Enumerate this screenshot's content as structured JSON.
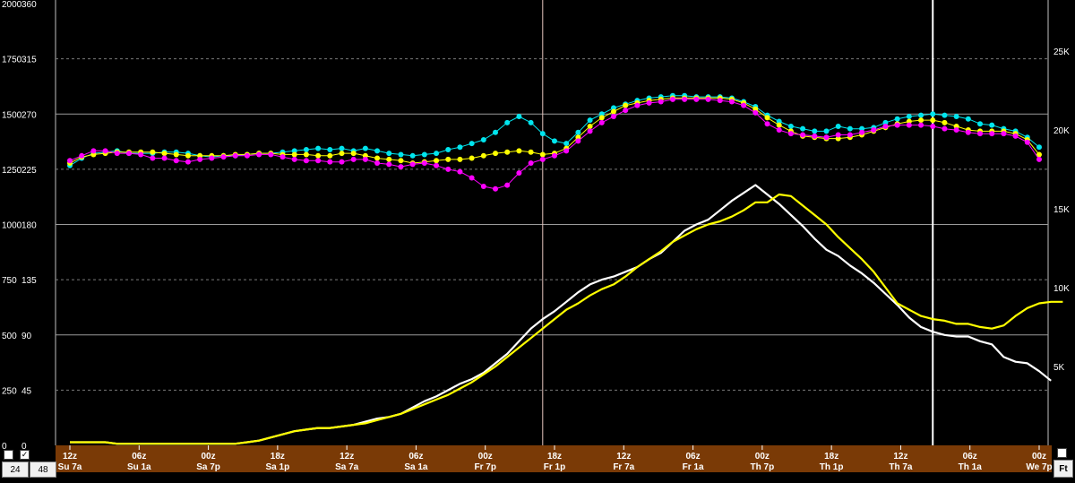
{
  "chart_data": {
    "type": "line",
    "grid": true,
    "left_axis_outer": {
      "ticks": [
        0,
        250,
        500,
        750,
        1000,
        1250,
        1500,
        1750,
        2000
      ],
      "range": [
        0,
        2000
      ]
    },
    "left_axis_inner": {
      "ticks": [
        0,
        45,
        90,
        135,
        180,
        225,
        270,
        315,
        360
      ],
      "range": [
        0,
        360
      ]
    },
    "right_axis": {
      "ticks": [
        "5K",
        "10K",
        "15K",
        "20K",
        "25K"
      ],
      "values": [
        5,
        10,
        15,
        20,
        25
      ],
      "range": [
        0,
        28
      ]
    },
    "x_ticks_utc": [
      "12z",
      "06z",
      "00z",
      "18z",
      "12z",
      "06z",
      "00z",
      "18z",
      "12z",
      "06z",
      "00z",
      "18z",
      "12z",
      "06z",
      "00z"
    ],
    "x_ticks_local": [
      "Su 7a",
      "Su 1a",
      "Sa 7p",
      "Sa 1p",
      "Sa 7a",
      "Sa 1a",
      "Fr 7p",
      "Fr 1p",
      "Fr 7a",
      "Fr 1a",
      "Th 7p",
      "Th 1p",
      "Th 7a",
      "Th 1a",
      "We 7p"
    ],
    "x_step_hours": 6,
    "series": [
      {
        "color": "#00e5ee",
        "axis": "inner",
        "markers": true,
        "values": [
          228,
          234,
          238,
          239,
          240,
          238,
          238,
          238,
          239,
          239,
          238,
          236,
          235,
          236,
          236,
          237,
          238,
          238,
          239,
          240,
          241,
          242,
          241,
          242,
          240,
          242,
          240,
          238,
          237,
          236,
          237,
          238,
          241,
          243,
          246,
          249,
          255,
          263,
          268,
          263,
          254,
          248,
          246,
          255,
          265,
          270,
          275,
          278,
          281,
          283,
          284,
          285,
          285,
          284,
          284,
          284,
          283,
          280,
          276,
          269,
          264,
          260,
          258,
          256,
          256,
          260,
          258,
          258,
          259,
          263,
          266,
          268,
          269,
          270,
          269,
          268,
          266,
          262,
          261,
          258,
          256,
          251,
          243
        ]
      },
      {
        "color": "#ffff00",
        "axis": "inner",
        "markers": true,
        "values": [
          230,
          235,
          237,
          238,
          239,
          239,
          239,
          239,
          238,
          237,
          236,
          236,
          236,
          236,
          237,
          237,
          238,
          238,
          237,
          237,
          237,
          236,
          236,
          238,
          238,
          236,
          234,
          233,
          232,
          230,
          231,
          232,
          233,
          233,
          234,
          236,
          238,
          239,
          240,
          239,
          237,
          238,
          242,
          251,
          260,
          267,
          272,
          277,
          279,
          281,
          282,
          283,
          283,
          283,
          283,
          283,
          282,
          279,
          274,
          267,
          261,
          256,
          252,
          251,
          250,
          250,
          251,
          253,
          256,
          259,
          262,
          264,
          265,
          265,
          263,
          260,
          257,
          256,
          256,
          256,
          254,
          249,
          237
        ]
      },
      {
        "color": "#ff00ff",
        "axis": "inner",
        "markers": true,
        "values": [
          232,
          236,
          240,
          240,
          238,
          238,
          237,
          234,
          234,
          232,
          231,
          233,
          234,
          235,
          236,
          236,
          237,
          237,
          235,
          233,
          232,
          232,
          231,
          231,
          233,
          233,
          230,
          229,
          227,
          229,
          230,
          228,
          225,
          223,
          218,
          211,
          209,
          212,
          222,
          230,
          233,
          236,
          240,
          248,
          256,
          263,
          268,
          273,
          277,
          279,
          280,
          282,
          282,
          282,
          282,
          281,
          280,
          277,
          271,
          262,
          257,
          254,
          253,
          252,
          251,
          253,
          253,
          255,
          257,
          260,
          261,
          261,
          261,
          260,
          258,
          257,
          255,
          254,
          254,
          254,
          252,
          247,
          233
        ]
      },
      {
        "color": "#ffffff",
        "axis": "right",
        "markers": false,
        "values": [
          0.2,
          0.2,
          0.2,
          0.2,
          0.1,
          0.1,
          0.1,
          0.1,
          0.1,
          0.1,
          0.1,
          0.1,
          0.1,
          0.1,
          0.1,
          0.2,
          0.3,
          0.5,
          0.7,
          0.9,
          1.0,
          1.1,
          1.1,
          1.2,
          1.3,
          1.5,
          1.7,
          1.8,
          2.0,
          2.4,
          2.8,
          3.1,
          3.5,
          3.9,
          4.2,
          4.6,
          5.2,
          5.8,
          6.6,
          7.4,
          8.0,
          8.5,
          9.1,
          9.7,
          10.2,
          10.5,
          10.7,
          11.0,
          11.3,
          11.8,
          12.2,
          12.9,
          13.6,
          14.0,
          14.3,
          14.9,
          15.5,
          16.0,
          16.5,
          15.9,
          15.3,
          14.6,
          13.9,
          13.1,
          12.4,
          12.0,
          11.4,
          10.9,
          10.3,
          9.6,
          8.9,
          8.1,
          7.5,
          7.2,
          7.0,
          6.9,
          6.9,
          6.6,
          6.4,
          5.6,
          5.3,
          5.2,
          4.7,
          4.1
        ]
      },
      {
        "color": "#ffff00",
        "axis": "right",
        "markers": false,
        "values": [
          0.2,
          0.2,
          0.2,
          0.2,
          0.1,
          0.1,
          0.1,
          0.1,
          0.1,
          0.1,
          0.1,
          0.1,
          0.1,
          0.1,
          0.1,
          0.2,
          0.3,
          0.5,
          0.7,
          0.9,
          1.0,
          1.1,
          1.1,
          1.2,
          1.3,
          1.4,
          1.6,
          1.8,
          2.0,
          2.3,
          2.6,
          2.9,
          3.2,
          3.6,
          4.0,
          4.5,
          5.0,
          5.6,
          6.2,
          6.8,
          7.4,
          8.0,
          8.6,
          9.0,
          9.5,
          9.9,
          10.2,
          10.7,
          11.3,
          11.8,
          12.3,
          12.9,
          13.3,
          13.7,
          14.0,
          14.2,
          14.5,
          14.9,
          15.4,
          15.4,
          15.9,
          15.8,
          15.2,
          14.6,
          14.0,
          13.2,
          12.5,
          11.8,
          11.0,
          10.0,
          9.0,
          8.6,
          8.2,
          8.0,
          7.9,
          7.7,
          7.7,
          7.5,
          7.4,
          7.6,
          8.2,
          8.7,
          9.0,
          9.1,
          9.1
        ]
      }
    ],
    "vertical_markers": [
      {
        "index": 40,
        "color": "#e8c8c0"
      },
      {
        "index": 73,
        "color": "#ffffff"
      }
    ]
  },
  "controls": {
    "btn_24": "24",
    "btn_48": "48",
    "unit_label": "Ft",
    "check_mark": "✓"
  },
  "colors": {
    "background": "#000000",
    "time_bar": "#7a3a06",
    "grid": "#8a8a8a"
  }
}
